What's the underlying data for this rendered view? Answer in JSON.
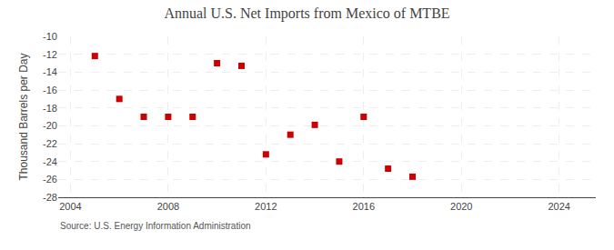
{
  "chart_data": {
    "type": "scatter",
    "title": "Annual U.S. Net Imports from Mexico of MTBE",
    "ylabel": "Thousand Barrels per Day",
    "source": "Source: U.S. Energy Information Administration",
    "x": [
      2005,
      2006,
      2007,
      2008,
      2009,
      2010,
      2011,
      2012,
      2013,
      2014,
      2015,
      2016,
      2017,
      2018
    ],
    "values": [
      -12.2,
      -17.0,
      -19.0,
      -19.0,
      -19.0,
      -13.0,
      -13.3,
      -23.2,
      -21.0,
      -19.9,
      -24.0,
      -19.0,
      -24.8,
      -25.7
    ],
    "color": "#cc0000",
    "marker": "square",
    "xlim": [
      2003.5,
      2025.5
    ],
    "xticks": [
      2004,
      2008,
      2012,
      2016,
      2020,
      2024
    ],
    "ylim": [
      -28,
      -10
    ],
    "yticks": [
      -28,
      -26,
      -24,
      -22,
      -20,
      -18,
      -16,
      -14,
      -12,
      -10
    ],
    "grid": true
  }
}
